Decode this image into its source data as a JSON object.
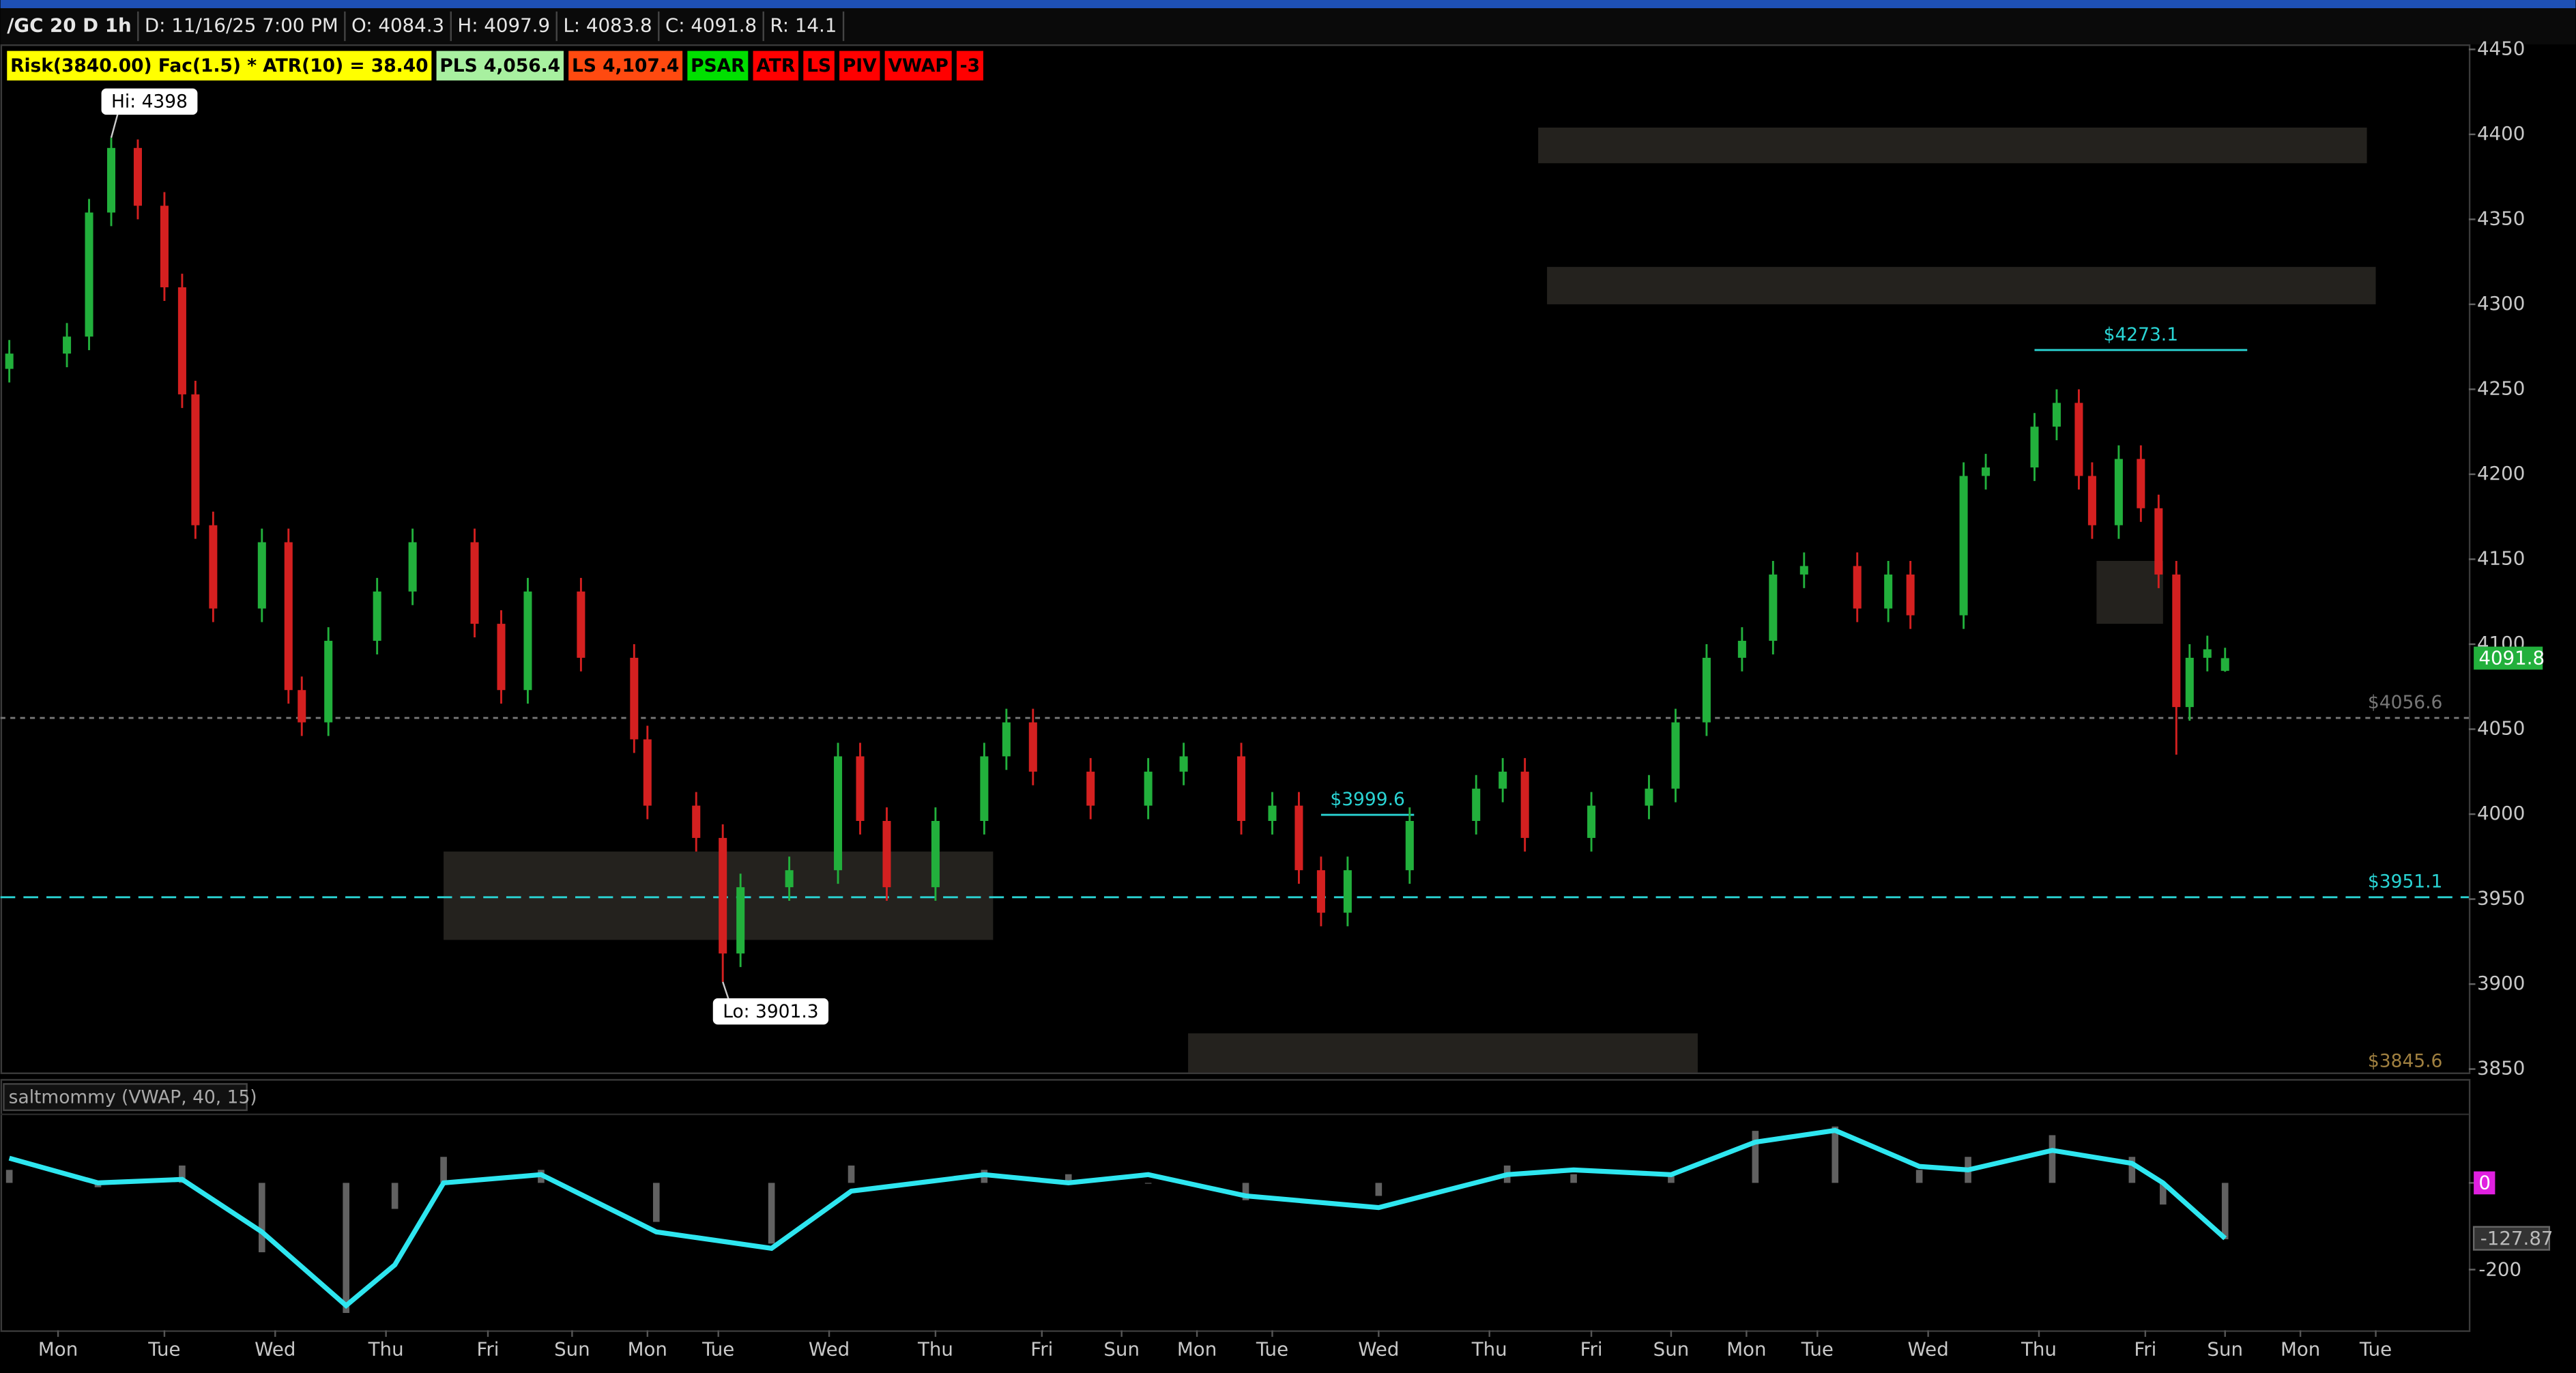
{
  "header": {
    "items": [
      "/GC 20 D 1h",
      "D: 11/16/25 7:00 PM",
      "O: 4084.3",
      "H: 4097.9",
      "L: 4083.8",
      "C: 4091.8",
      "R: 14.1"
    ],
    "badges": [
      {
        "text": "Risk(3840.00) Fac(1.5) * ATR(10) = 38.40",
        "bg": "#ffff00",
        "fg": "#000000"
      },
      {
        "text": "PLS 4,056.4",
        "bg": "#a8f0a0",
        "fg": "#000000"
      },
      {
        "text": "LS 4,107.4",
        "bg": "#ff4a10",
        "fg": "#000000"
      },
      {
        "text": "PSAR",
        "bg": "#00e000",
        "fg": "#000000"
      },
      {
        "text": "ATR",
        "bg": "#ff0000",
        "fg": "#000000"
      },
      {
        "text": "LS",
        "bg": "#ff0000",
        "fg": "#000000"
      },
      {
        "text": "PIV",
        "bg": "#ff0000",
        "fg": "#000000"
      },
      {
        "text": "VWAP",
        "bg": "#ff0000",
        "fg": "#000000"
      },
      {
        "text": "-3",
        "bg": "#ff0000",
        "fg": "#000000"
      }
    ]
  },
  "chart_data": [
    {
      "type": "candlestick",
      "up_color": "#22b03c",
      "down_color": "#d42020",
      "x": [
        2,
        15,
        20,
        25,
        31,
        37,
        41,
        44,
        48,
        59,
        65,
        68,
        74,
        85,
        93,
        107,
        113,
        119,
        131,
        143,
        146,
        157,
        163,
        167,
        178,
        189,
        194,
        200,
        211,
        222,
        227,
        233,
        246,
        259,
        267,
        280,
        287,
        293,
        298,
        304,
        318,
        333,
        339,
        344,
        359,
        372,
        378,
        385,
        393,
        400,
        407,
        419,
        426,
        431,
        443,
        448,
        459,
        464,
        469,
        472,
        478,
        483,
        487,
        491,
        494,
        498,
        502
      ],
      "open": [
        4262,
        4271,
        4281,
        4354,
        4392,
        4358,
        4310,
        4247,
        4170,
        4121,
        4160,
        4073,
        4054,
        4102,
        4131,
        4160,
        4112,
        4073,
        4131,
        4092,
        4044,
        4005,
        3986,
        3918,
        3957,
        3967,
        4034,
        3996,
        3957,
        3996,
        4034,
        4054,
        4025,
        4005,
        4025,
        4034,
        3996,
        4005,
        3967,
        3942,
        3967,
        3996,
        4015,
        4025,
        3986,
        4005,
        4015,
        4054,
        4092,
        4102,
        4141,
        4146,
        4121,
        4141,
        4117,
        4199,
        4204,
        4228,
        4242,
        4199,
        4170,
        4209,
        4180,
        4141,
        4063,
        4092,
        4084.3
      ],
      "high": [
        4279,
        4289,
        4362,
        4398,
        4397,
        4366,
        4318,
        4255,
        4178,
        4168,
        4168,
        4081,
        4110,
        4139,
        4168,
        4168,
        4120,
        4139,
        4139,
        4100,
        4052,
        4013,
        3994,
        3965,
        3975,
        4042,
        4042,
        4004,
        4004,
        4042,
        4062,
        4062,
        4033,
        4033,
        4042,
        4042,
        4013,
        4013,
        3975,
        3975,
        4004,
        4023,
        4033,
        4033,
        4013,
        4023,
        4062,
        4100,
        4110,
        4149,
        4154,
        4154,
        4149,
        4149,
        4207,
        4212,
        4236,
        4250,
        4250,
        4207,
        4217,
        4217,
        4188,
        4149,
        4100,
        4105,
        4097.9
      ],
      "low": [
        4254,
        4263,
        4273,
        4346,
        4350,
        4302,
        4239,
        4162,
        4113,
        4113,
        4065,
        4046,
        4046,
        4094,
        4123,
        4104,
        4065,
        4065,
        4084,
        4036,
        3997,
        3978,
        3901.3,
        3910,
        3949,
        3959,
        3988,
        3949,
        3949,
        3988,
        4026,
        4017,
        3997,
        3997,
        4017,
        3988,
        3988,
        3959,
        3934,
        3934,
        3959,
        3988,
        4007,
        3978,
        3978,
        3997,
        4007,
        4046,
        4084,
        4094,
        4133,
        4113,
        4113,
        4109,
        4109,
        4191,
        4196,
        4220,
        4191,
        4162,
        4162,
        4172,
        4133,
        4035,
        4055,
        4084,
        4083.8
      ],
      "close": [
        4271,
        4281,
        4354,
        4392,
        4358,
        4310,
        4247,
        4170,
        4121,
        4160,
        4073,
        4054,
        4102,
        4131,
        4160,
        4112,
        4073,
        4131,
        4092,
        4044,
        4005,
        3986,
        3918,
        3957,
        3967,
        4034,
        3996,
        3957,
        3996,
        4034,
        4054,
        4025,
        4005,
        4025,
        4034,
        3996,
        4005,
        3967,
        3942,
        3967,
        3996,
        4015,
        4025,
        3986,
        4005,
        4015,
        4054,
        4092,
        4102,
        4141,
        4146,
        4121,
        4141,
        4117,
        4199,
        4204,
        4228,
        4242,
        4199,
        4170,
        4209,
        4180,
        4141,
        4063,
        4092,
        4097,
        4091.8
      ],
      "last_price_color": "#22b03c",
      "xlim": [
        0,
        557
      ],
      "xticks": [
        {
          "value": 13,
          "label": "Mon"
        },
        {
          "value": 37,
          "label": "Tue"
        },
        {
          "value": 62,
          "label": "Wed"
        },
        {
          "value": 87,
          "label": "Thu"
        },
        {
          "value": 110,
          "label": "Fri"
        },
        {
          "value": 129,
          "label": "Sun"
        },
        {
          "value": 146,
          "label": "Mon"
        },
        {
          "value": 162,
          "label": "Tue"
        },
        {
          "value": 187,
          "label": "Wed"
        },
        {
          "value": 211,
          "label": "Thu"
        },
        {
          "value": 235,
          "label": "Fri"
        },
        {
          "value": 253,
          "label": "Sun"
        },
        {
          "value": 270,
          "label": "Mon"
        },
        {
          "value": 287,
          "label": "Tue"
        },
        {
          "value": 311,
          "label": "Wed"
        },
        {
          "value": 336,
          "label": "Thu"
        },
        {
          "value": 359,
          "label": "Fri"
        },
        {
          "value": 377,
          "label": "Sun"
        },
        {
          "value": 394,
          "label": "Mon"
        },
        {
          "value": 410,
          "label": "Tue"
        },
        {
          "value": 435,
          "label": "Wed"
        },
        {
          "value": 460,
          "label": "Thu"
        },
        {
          "value": 484,
          "label": "Fri"
        },
        {
          "value": 502,
          "label": "Sun"
        },
        {
          "value": 519,
          "label": "Mon"
        },
        {
          "value": 536,
          "label": "Tue"
        }
      ],
      "ylim": [
        3848,
        4452
      ],
      "yticks": [
        3850,
        3900,
        3950,
        4000,
        4050,
        4100,
        4150,
        4200,
        4250,
        4300,
        4350,
        4400,
        4450
      ],
      "zones": [
        {
          "high": 4404,
          "low": 4383,
          "x_start": 347,
          "x_end": 534
        },
        {
          "high": 4322,
          "low": 4300,
          "x_start": 349,
          "x_end": 536
        },
        {
          "high": 3978,
          "low": 3926,
          "x_start": 100,
          "x_end": 224
        },
        {
          "high": 4149,
          "low": 4112,
          "x_start": 473,
          "x_end": 488
        },
        {
          "high": 3871,
          "low": 3848,
          "x_start": 268,
          "x_end": 383
        }
      ],
      "levels": [
        {
          "value": 3951.1,
          "label": "$3951.1",
          "style": "dashed",
          "color": "#2ad4d4"
        },
        {
          "value": 4056.6,
          "label": "$4056.6",
          "style": "dotted",
          "color": "#777777"
        },
        {
          "value": 3845.6,
          "label": "$3845.6",
          "style": "none",
          "color": "#a08040"
        },
        {
          "value": 4273.1,
          "label": "$4273.1",
          "style": "solid",
          "color": "#2ad4d4",
          "x_start": 459,
          "x_end": 507
        },
        {
          "value": 3999.6,
          "label": "$3999.6",
          "style": "solid",
          "color": "#2ad4d4",
          "x_start": 298,
          "x_end": 319
        }
      ],
      "annotations": [
        {
          "text": "Hi: 4398",
          "x": 25,
          "value": 4398
        },
        {
          "text": "Lo: 3901.3",
          "x": 163,
          "value": 3901.3
        }
      ]
    },
    {
      "type": "oscillator",
      "title": "saltmommy (VWAP, 40, 15)",
      "x": [
        2,
        22,
        41,
        59,
        78,
        89,
        100,
        122,
        148,
        174,
        192,
        222,
        241,
        259,
        281,
        311,
        340,
        355,
        377,
        396,
        414,
        433,
        444,
        463,
        481,
        488,
        502
      ],
      "series": [
        {
          "type": "histogram",
          "color": "#8a8a8a",
          "values": [
            30,
            -10,
            40,
            -160,
            -300,
            -60,
            60,
            30,
            -90,
            -140,
            40,
            30,
            20,
            0,
            -40,
            -30,
            40,
            20,
            20,
            120,
            130,
            30,
            60,
            110,
            60,
            -50,
            -130
          ]
        },
        {
          "type": "line",
          "color": "#2ee6f0",
          "values": [
            57,
            0,
            8,
            -113,
            -283,
            -189,
            0,
            19,
            -113,
            -151,
            -19,
            19,
            0,
            19,
            -30,
            -57,
            19,
            30,
            19,
            94,
            121,
            38,
            30,
            75,
            45,
            0,
            -127.87
          ]
        }
      ],
      "zero_color": "#e020e0",
      "ylim": [
        -340,
        160
      ],
      "yticks": [
        0,
        -200
      ]
    }
  ]
}
